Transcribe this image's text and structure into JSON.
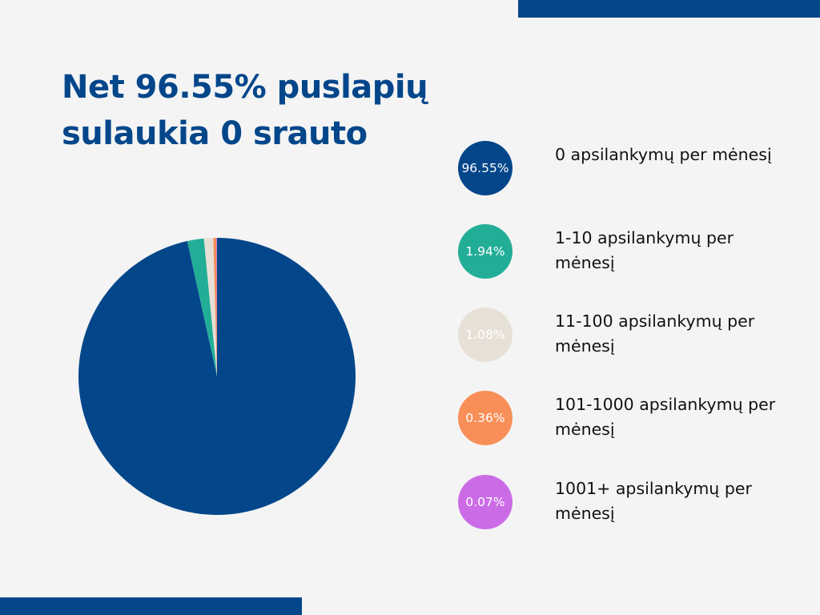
{
  "title": {
    "line1": "Net 96.55% puslapių",
    "line2": "sulaukia 0 srauto"
  },
  "chart_data": {
    "type": "pie",
    "slices": [
      {
        "label": "0 apsilankymų per mėnesį",
        "value": 96.55,
        "display": "96.55%",
        "color": "#03468a"
      },
      {
        "label": "1-10 apsilankymų per mėnesį",
        "value": 1.94,
        "display": "1.94%",
        "color": "#22ad97"
      },
      {
        "label": "11-100 apsilankymų per mėnesį",
        "value": 1.08,
        "display": "1.08%",
        "color": "#e7e0d6"
      },
      {
        "label": "101-1000 apsilankymų per mėnesį",
        "value": 0.36,
        "display": "0.36%",
        "color": "#f88f58"
      },
      {
        "label": "1001+ apsilankymų per mėnesį",
        "value": 0.07,
        "display": "0.07%",
        "color": "#cb6ce6"
      }
    ],
    "legend_position": "right"
  },
  "colors": {
    "accent": "#03468a",
    "background": "#f4f4f4"
  }
}
